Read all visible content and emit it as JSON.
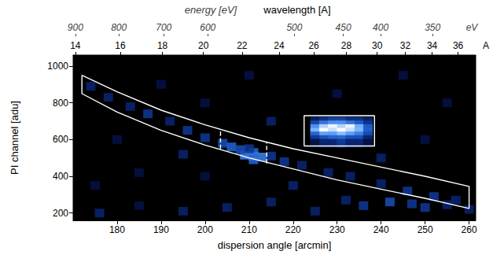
{
  "chart_data": {
    "type": "heatmap",
    "xlabel": "dispersion angle [arcmin]",
    "ylabel": "PI channel [adu]",
    "xlim": [
      170,
      261.5
    ],
    "xticks": [
      180,
      190,
      200,
      210,
      220,
      230,
      240,
      250,
      260
    ],
    "ylim": [
      160,
      1060
    ],
    "yticks": [
      200,
      400,
      600,
      800,
      1000
    ],
    "grid": false,
    "energy_axis": {
      "title": "energy [eV]",
      "unit": "eV",
      "ticks": [
        {
          "value": 170.5,
          "label": "900"
        },
        {
          "value": 180.4,
          "label": "800"
        },
        {
          "value": 190.6,
          "label": "700"
        },
        {
          "value": 200.6,
          "label": "600"
        },
        {
          "value": 220.3,
          "label": "500"
        },
        {
          "value": 231.4,
          "label": "450"
        },
        {
          "value": 239.9,
          "label": "400"
        },
        {
          "value": 251.7,
          "label": "350"
        }
      ]
    },
    "wavelength_axis": {
      "title": "wavelength [A]",
      "unit": "A",
      "ticks": [
        {
          "value": 170.5,
          "label": "14"
        },
        {
          "value": 180.7,
          "label": "16"
        },
        {
          "value": 190.3,
          "label": "18"
        },
        {
          "value": 199.6,
          "label": "20"
        },
        {
          "value": 208.4,
          "label": "22"
        },
        {
          "value": 216.8,
          "label": "24"
        },
        {
          "value": 224.7,
          "label": "26"
        },
        {
          "value": 232.1,
          "label": "28"
        },
        {
          "value": 239.1,
          "label": "30"
        },
        {
          "value": 245.5,
          "label": "32"
        },
        {
          "value": 251.6,
          "label": "34"
        },
        {
          "value": 257.5,
          "label": "36"
        }
      ]
    },
    "intensity_range": [
      0,
      10
    ],
    "cells": [
      [
        225,
        700,
        2
      ],
      [
        227,
        700,
        3
      ],
      [
        229,
        700,
        4
      ],
      [
        231,
        700,
        4
      ],
      [
        233,
        700,
        3
      ],
      [
        235,
        700,
        3
      ],
      [
        237,
        700,
        2
      ],
      [
        225,
        680,
        4
      ],
      [
        227,
        680,
        6
      ],
      [
        229,
        680,
        7
      ],
      [
        231,
        680,
        7
      ],
      [
        233,
        680,
        6
      ],
      [
        235,
        680,
        5
      ],
      [
        237,
        680,
        3
      ],
      [
        225,
        660,
        7
      ],
      [
        227,
        660,
        9
      ],
      [
        229,
        660,
        10
      ],
      [
        231,
        660,
        9
      ],
      [
        233,
        660,
        10
      ],
      [
        235,
        660,
        8
      ],
      [
        237,
        660,
        5
      ],
      [
        225,
        640,
        8
      ],
      [
        227,
        640,
        10
      ],
      [
        229,
        640,
        9
      ],
      [
        231,
        640,
        10
      ],
      [
        233,
        640,
        9
      ],
      [
        235,
        640,
        8
      ],
      [
        237,
        640,
        5
      ],
      [
        225,
        620,
        5
      ],
      [
        227,
        620,
        7
      ],
      [
        229,
        620,
        7
      ],
      [
        231,
        620,
        8
      ],
      [
        233,
        620,
        7
      ],
      [
        235,
        620,
        6
      ],
      [
        237,
        620,
        4
      ],
      [
        225,
        600,
        3
      ],
      [
        227,
        600,
        4
      ],
      [
        229,
        600,
        5
      ],
      [
        231,
        600,
        5
      ],
      [
        233,
        600,
        4
      ],
      [
        235,
        600,
        4
      ],
      [
        237,
        600,
        2
      ],
      [
        225,
        580,
        1
      ],
      [
        227,
        580,
        2
      ],
      [
        229,
        580,
        2
      ],
      [
        231,
        580,
        3
      ],
      [
        233,
        580,
        2
      ],
      [
        235,
        580,
        2
      ],
      [
        237,
        580,
        1
      ],
      [
        211,
        510,
        10
      ],
      [
        209,
        515,
        6
      ],
      [
        213,
        505,
        6
      ],
      [
        211,
        530,
        5
      ],
      [
        211,
        490,
        5
      ],
      [
        210,
        550,
        3
      ],
      [
        174,
        890,
        2
      ],
      [
        178,
        830,
        2
      ],
      [
        183,
        780,
        2
      ],
      [
        187,
        740,
        3
      ],
      [
        192,
        700,
        2
      ],
      [
        196,
        650,
        3
      ],
      [
        200,
        610,
        3
      ],
      [
        204,
        580,
        4
      ],
      [
        206,
        560,
        5
      ],
      [
        208,
        545,
        4
      ],
      [
        215,
        510,
        3
      ],
      [
        218,
        480,
        3
      ],
      [
        222,
        460,
        2
      ],
      [
        228,
        420,
        2
      ],
      [
        233,
        400,
        2
      ],
      [
        240,
        360,
        2
      ],
      [
        246,
        320,
        3
      ],
      [
        252,
        290,
        3
      ],
      [
        257,
        270,
        2
      ],
      [
        176,
        200,
        2
      ],
      [
        185,
        240,
        1
      ],
      [
        195,
        210,
        2
      ],
      [
        205,
        230,
        2
      ],
      [
        215,
        260,
        2
      ],
      [
        225,
        210,
        2
      ],
      [
        236,
        240,
        3
      ],
      [
        242,
        260,
        4
      ],
      [
        247,
        250,
        3
      ],
      [
        250,
        230,
        3
      ],
      [
        255,
        245,
        2
      ],
      [
        260,
        220,
        2
      ],
      [
        232,
        270,
        2
      ],
      [
        180,
        600,
        1
      ],
      [
        190,
        900,
        1
      ],
      [
        200,
        800,
        1
      ],
      [
        215,
        700,
        2
      ],
      [
        230,
        850,
        1
      ],
      [
        245,
        950,
        1
      ],
      [
        250,
        600,
        1
      ],
      [
        240,
        500,
        2
      ],
      [
        185,
        420,
        1
      ],
      [
        200,
        400,
        1
      ],
      [
        220,
        350,
        2
      ],
      [
        175,
        350,
        1
      ],
      [
        255,
        800,
        1
      ],
      [
        210,
        950,
        1
      ],
      [
        195,
        520,
        2
      ]
    ],
    "extraction_region": {
      "x": [
        172,
        180,
        190,
        200,
        210,
        220,
        230,
        240,
        250,
        260
      ],
      "upper": [
        950,
        860,
        760,
        680,
        610,
        550,
        500,
        450,
        400,
        345
      ],
      "lower": [
        850,
        750,
        650,
        570,
        500,
        440,
        380,
        330,
        280,
        225
      ]
    },
    "dashed_lines": [
      {
        "x": 203.5,
        "y": [
          548,
          655
        ]
      },
      {
        "x": 214,
        "y": [
          470,
          585
        ]
      }
    ],
    "box": {
      "x": [
        222.5,
        238.5
      ],
      "y": [
        565,
        730
      ]
    }
  }
}
